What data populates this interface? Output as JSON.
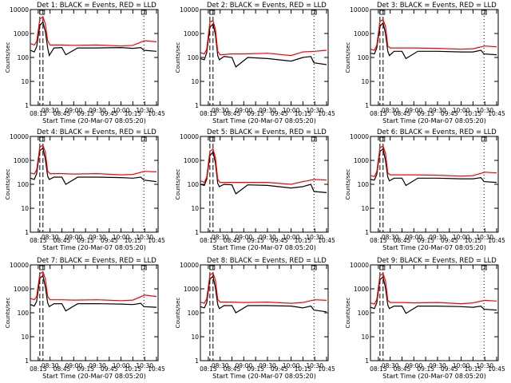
{
  "common": {
    "xlabel": "Start Time (20-Mar-07 08:05:20)",
    "ylabel": "Counts/sec",
    "xticks": [
      "08:15",
      "08:30",
      "08:45",
      "09:00",
      "09:15",
      "09:30",
      "09:45",
      "10:00",
      "10:15",
      "10:30",
      "10:45"
    ],
    "yticks": [
      "1",
      "10",
      "100",
      "1000",
      "10000"
    ],
    "colors": {
      "events": "#000000",
      "lld": "#ff0000"
    }
  },
  "chart_data": [
    {
      "type": "line",
      "title": "Det 1: BLACK = Events, RED = LLD",
      "xlabel": "Start Time (20-Mar-07 08:05:20)",
      "ylabel": "Counts/sec",
      "ylim": [
        1,
        10000
      ],
      "yscale": "log",
      "series": [
        {
          "name": "Events",
          "color": "#000000",
          "x": [
            "08:05",
            "08:10",
            "08:13",
            "08:17",
            "08:21",
            "08:24",
            "08:27",
            "08:29",
            "08:35",
            "08:45",
            "08:50",
            "09:05",
            "09:30",
            "10:00",
            "10:15",
            "10:25",
            "10:29",
            "10:45"
          ],
          "y": [
            200,
            170,
            280,
            2200,
            3000,
            1200,
            250,
            120,
            250,
            260,
            130,
            250,
            250,
            260,
            240,
            260,
            200,
            180
          ]
        },
        {
          "name": "LLD",
          "color": "#ff0000",
          "x": [
            "08:05",
            "08:10",
            "08:13",
            "08:17",
            "08:21",
            "08:24",
            "08:27",
            "08:30",
            "08:45",
            "09:00",
            "09:30",
            "10:00",
            "10:15",
            "10:30",
            "10:45"
          ],
          "y": [
            380,
            330,
            450,
            4000,
            5000,
            2500,
            500,
            330,
            330,
            320,
            330,
            300,
            320,
            500,
            450
          ]
        }
      ]
    },
    {
      "type": "line",
      "title": "Det 2: BLACK = Events, RED = LLD",
      "xlabel": "Start Time (20-Mar-07 08:05:20)",
      "ylabel": "Counts/sec",
      "ylim": [
        1,
        10000
      ],
      "yscale": "log",
      "series": [
        {
          "name": "Events",
          "color": "#000000",
          "x": [
            "08:05",
            "08:10",
            "08:13",
            "08:17",
            "08:21",
            "08:24",
            "08:27",
            "08:29",
            "08:35",
            "08:45",
            "08:50",
            "09:05",
            "09:30",
            "10:00",
            "10:15",
            "10:25",
            "10:29",
            "10:45"
          ],
          "y": [
            90,
            80,
            160,
            1800,
            2500,
            900,
            120,
            80,
            110,
            100,
            40,
            100,
            90,
            70,
            100,
            110,
            60,
            50
          ]
        },
        {
          "name": "LLD",
          "color": "#ff0000",
          "x": [
            "08:05",
            "08:10",
            "08:13",
            "08:17",
            "08:21",
            "08:24",
            "08:27",
            "08:30",
            "08:45",
            "09:00",
            "09:30",
            "10:00",
            "10:15",
            "10:30",
            "10:45"
          ],
          "y": [
            160,
            140,
            220,
            3000,
            3500,
            1500,
            180,
            130,
            140,
            140,
            150,
            120,
            170,
            180,
            200
          ]
        }
      ]
    },
    {
      "type": "line",
      "title": "Det 3: BLACK = Events, RED = LLD",
      "xlabel": "Start Time (20-Mar-07 08:05:20)",
      "ylabel": "Counts/sec",
      "ylim": [
        1,
        10000
      ],
      "yscale": "log",
      "series": [
        {
          "name": "Events",
          "color": "#000000",
          "x": [
            "08:05",
            "08:10",
            "08:13",
            "08:17",
            "08:21",
            "08:24",
            "08:27",
            "08:29",
            "08:35",
            "08:45",
            "08:50",
            "09:05",
            "09:30",
            "10:00",
            "10:15",
            "10:25",
            "10:29",
            "10:45"
          ],
          "y": [
            150,
            140,
            250,
            2000,
            2800,
            1000,
            180,
            120,
            180,
            180,
            90,
            180,
            180,
            170,
            170,
            200,
            140,
            130
          ]
        },
        {
          "name": "LLD",
          "color": "#ff0000",
          "x": [
            "08:05",
            "08:10",
            "08:13",
            "08:17",
            "08:21",
            "08:24",
            "08:27",
            "08:30",
            "08:45",
            "09:00",
            "09:30",
            "10:00",
            "10:15",
            "10:30",
            "10:45"
          ],
          "y": [
            220,
            200,
            320,
            3200,
            3800,
            2000,
            300,
            250,
            250,
            250,
            240,
            220,
            230,
            300,
            280
          ]
        }
      ]
    },
    {
      "type": "line",
      "title": "Det 4: BLACK = Events, RED = LLD",
      "xlabel": "Start Time (20-Mar-07 08:05:20)",
      "ylabel": "Counts/sec",
      "ylim": [
        1,
        10000
      ],
      "yscale": "log",
      "series": [
        {
          "name": "Events",
          "color": "#000000",
          "x": [
            "08:05",
            "08:10",
            "08:13",
            "08:17",
            "08:21",
            "08:24",
            "08:27",
            "08:29",
            "08:35",
            "08:45",
            "08:50",
            "09:05",
            "09:30",
            "10:00",
            "10:15",
            "10:25",
            "10:29",
            "10:45"
          ],
          "y": [
            180,
            160,
            280,
            2600,
            3200,
            1100,
            220,
            160,
            200,
            200,
            100,
            200,
            200,
            190,
            180,
            200,
            150,
            130
          ]
        },
        {
          "name": "LLD",
          "color": "#ff0000",
          "x": [
            "08:05",
            "08:10",
            "08:13",
            "08:17",
            "08:21",
            "08:24",
            "08:27",
            "08:30",
            "08:45",
            "09:00",
            "09:30",
            "10:00",
            "10:15",
            "10:30",
            "10:45"
          ],
          "y": [
            300,
            270,
            400,
            3600,
            4300,
            2200,
            350,
            280,
            280,
            270,
            280,
            250,
            260,
            350,
            330
          ]
        }
      ]
    },
    {
      "type": "line",
      "title": "Det 5: BLACK = Events, RED = LLD",
      "xlabel": "Start Time (20-Mar-07 08:05:20)",
      "ylabel": "Counts/sec",
      "ylim": [
        1,
        10000
      ],
      "yscale": "log",
      "series": [
        {
          "name": "Events",
          "color": "#000000",
          "x": [
            "08:05",
            "08:10",
            "08:13",
            "08:17",
            "08:21",
            "08:24",
            "08:27",
            "08:29",
            "08:35",
            "08:45",
            "08:50",
            "09:05",
            "09:30",
            "10:00",
            "10:15",
            "10:25",
            "10:29",
            "10:45"
          ],
          "y": [
            100,
            90,
            160,
            1600,
            2200,
            800,
            110,
            80,
            100,
            95,
            40,
            95,
            90,
            70,
            80,
            100,
            50,
            45
          ]
        },
        {
          "name": "LLD",
          "color": "#ff0000",
          "x": [
            "08:05",
            "08:10",
            "08:13",
            "08:17",
            "08:21",
            "08:24",
            "08:27",
            "08:30",
            "08:45",
            "09:00",
            "09:30",
            "10:00",
            "10:15",
            "10:30",
            "10:45"
          ],
          "y": [
            140,
            120,
            200,
            2400,
            3000,
            1300,
            160,
            120,
            120,
            120,
            120,
            100,
            130,
            160,
            150
          ]
        }
      ]
    },
    {
      "type": "line",
      "title": "Det 6: BLACK = Events, RED = LLD",
      "xlabel": "Start Time (20-Mar-07 08:05:20)",
      "ylabel": "Counts/sec",
      "ylim": [
        1,
        10000
      ],
      "yscale": "log",
      "series": [
        {
          "name": "Events",
          "color": "#000000",
          "x": [
            "08:05",
            "08:10",
            "08:13",
            "08:17",
            "08:21",
            "08:24",
            "08:27",
            "08:29",
            "08:35",
            "08:45",
            "08:50",
            "09:05",
            "09:30",
            "10:00",
            "10:15",
            "10:25",
            "10:29",
            "10:45"
          ],
          "y": [
            160,
            150,
            260,
            2400,
            3000,
            1000,
            200,
            140,
            180,
            180,
            90,
            180,
            180,
            170,
            170,
            190,
            130,
            120
          ]
        },
        {
          "name": "LLD",
          "color": "#ff0000",
          "x": [
            "08:05",
            "08:10",
            "08:13",
            "08:17",
            "08:21",
            "08:24",
            "08:27",
            "08:30",
            "08:45",
            "09:00",
            "09:30",
            "10:00",
            "10:15",
            "10:30",
            "10:45"
          ],
          "y": [
            230,
            210,
            340,
            3400,
            4000,
            2000,
            300,
            250,
            250,
            250,
            240,
            220,
            230,
            320,
            300
          ]
        }
      ]
    },
    {
      "type": "line",
      "title": "Det 7: BLACK = Events, RED = LLD",
      "xlabel": "Start Time (20-Mar-07 08:05:20)",
      "ylabel": "Counts/sec",
      "ylim": [
        1,
        10000
      ],
      "yscale": "log",
      "series": [
        {
          "name": "Events",
          "color": "#000000",
          "x": [
            "08:05",
            "08:10",
            "08:13",
            "08:17",
            "08:21",
            "08:24",
            "08:27",
            "08:29",
            "08:35",
            "08:45",
            "08:50",
            "09:05",
            "09:30",
            "10:00",
            "10:15",
            "10:25",
            "10:29",
            "10:45"
          ],
          "y": [
            220,
            190,
            300,
            2800,
            3500,
            1200,
            260,
            180,
            240,
            240,
            120,
            240,
            240,
            230,
            220,
            250,
            180,
            170
          ]
        },
        {
          "name": "LLD",
          "color": "#ff0000",
          "x": [
            "08:05",
            "08:10",
            "08:13",
            "08:17",
            "08:21",
            "08:24",
            "08:27",
            "08:30",
            "08:45",
            "09:00",
            "09:30",
            "10:00",
            "10:15",
            "10:30",
            "10:45"
          ],
          "y": [
            400,
            350,
            480,
            4200,
            5200,
            2600,
            480,
            350,
            350,
            340,
            350,
            320,
            340,
            550,
            480
          ]
        }
      ]
    },
    {
      "type": "line",
      "title": "Det 8: BLACK = Events, RED = LLD",
      "xlabel": "Start Time (20-Mar-07 08:05:20)",
      "ylabel": "Counts/sec",
      "ylim": [
        1,
        10000
      ],
      "yscale": "log",
      "series": [
        {
          "name": "Events",
          "color": "#000000",
          "x": [
            "08:05",
            "08:10",
            "08:13",
            "08:17",
            "08:21",
            "08:24",
            "08:27",
            "08:29",
            "08:35",
            "08:45",
            "08:50",
            "09:05",
            "09:30",
            "10:00",
            "10:15",
            "10:25",
            "10:29",
            "10:45"
          ],
          "y": [
            180,
            160,
            260,
            2600,
            3300,
            1100,
            220,
            150,
            200,
            200,
            100,
            200,
            200,
            190,
            160,
            190,
            130,
            110
          ]
        },
        {
          "name": "LLD",
          "color": "#ff0000",
          "x": [
            "08:05",
            "08:10",
            "08:13",
            "08:17",
            "08:21",
            "08:24",
            "08:27",
            "08:30",
            "08:45",
            "09:00",
            "09:30",
            "10:00",
            "10:15",
            "10:30",
            "10:45"
          ],
          "y": [
            280,
            250,
            380,
            3800,
            4600,
            2300,
            360,
            280,
            280,
            270,
            280,
            250,
            270,
            350,
            330
          ]
        }
      ]
    },
    {
      "type": "line",
      "title": "Det 9: BLACK = Events, RED = LLD",
      "xlabel": "Start Time (20-Mar-07 08:05:20)",
      "ylabel": "Counts/sec",
      "ylim": [
        1,
        10000
      ],
      "yscale": "log",
      "series": [
        {
          "name": "Events",
          "color": "#000000",
          "x": [
            "08:05",
            "08:10",
            "08:13",
            "08:17",
            "08:21",
            "08:24",
            "08:27",
            "08:29",
            "08:35",
            "08:45",
            "08:50",
            "09:05",
            "09:30",
            "10:00",
            "10:15",
            "10:25",
            "10:29",
            "10:45"
          ],
          "y": [
            170,
            150,
            260,
            2500,
            3100,
            1100,
            210,
            150,
            190,
            190,
            95,
            190,
            190,
            180,
            170,
            190,
            140,
            130
          ]
        },
        {
          "name": "LLD",
          "color": "#ff0000",
          "x": [
            "08:05",
            "08:10",
            "08:13",
            "08:17",
            "08:21",
            "08:24",
            "08:27",
            "08:30",
            "08:45",
            "09:00",
            "09:30",
            "10:00",
            "10:15",
            "10:30",
            "10:45"
          ],
          "y": [
            260,
            230,
            360,
            3600,
            4400,
            2200,
            330,
            270,
            270,
            260,
            270,
            240,
            260,
            330,
            310
          ]
        }
      ]
    }
  ]
}
